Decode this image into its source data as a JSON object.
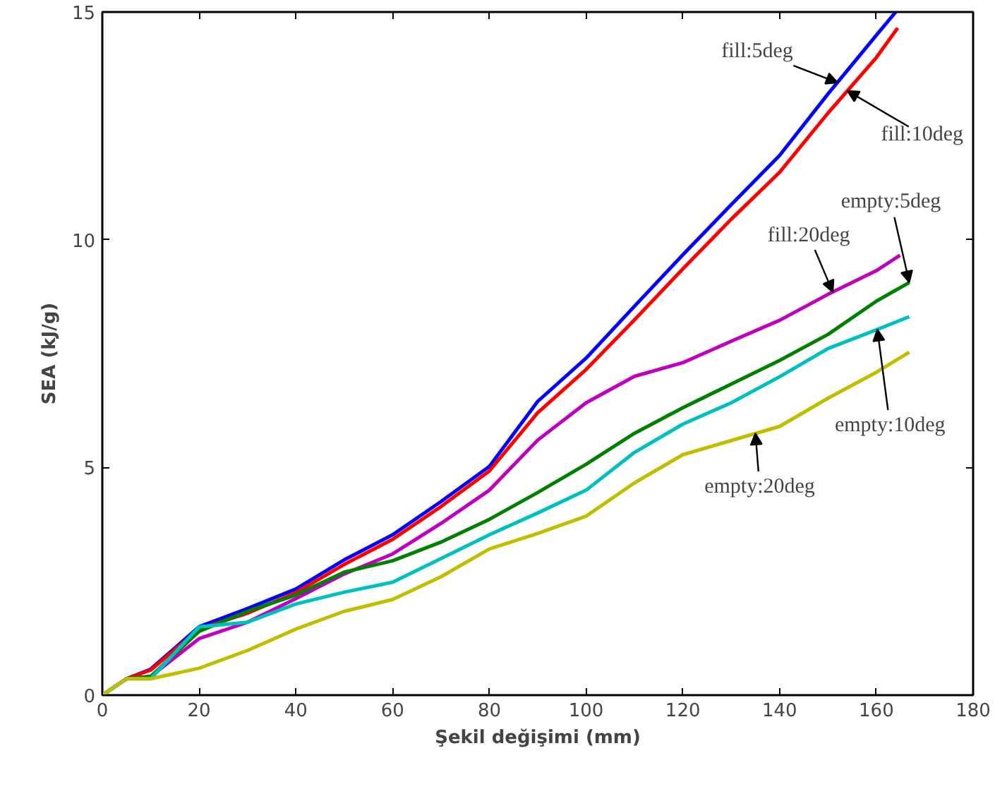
{
  "chart_data": {
    "type": "line",
    "xlabel": "Şekil değişimi (mm)",
    "ylabel": "SEA (kJ/g)",
    "xlim": [
      0,
      180
    ],
    "ylim": [
      0,
      15
    ],
    "xticks": [
      0,
      20,
      40,
      60,
      80,
      100,
      120,
      140,
      160,
      180
    ],
    "yticks": [
      0,
      5,
      10,
      15
    ],
    "line_style": "solid",
    "marker": "none",
    "series": [
      {
        "color": "#0000ff",
        "x": [
          0,
          5,
          10,
          20,
          30,
          40,
          50,
          60,
          70,
          80,
          90,
          100,
          110,
          120,
          130,
          140,
          150,
          160,
          164
        ],
        "values": [
          0,
          0.36,
          0.57,
          1.5,
          1.9,
          2.33,
          2.97,
          3.52,
          4.25,
          5.02,
          6.45,
          7.4,
          8.54,
          9.67,
          10.77,
          11.85,
          13.2,
          14.49,
          15.0
        ]
      },
      {
        "color": "#ff0000",
        "x": [
          0,
          5,
          10,
          20,
          30,
          40,
          50,
          60,
          70,
          80,
          90,
          100,
          110,
          120,
          130,
          140,
          150,
          160,
          164.4
        ],
        "values": [
          0,
          0.36,
          0.55,
          1.45,
          1.8,
          2.25,
          2.87,
          3.42,
          4.14,
          4.92,
          6.2,
          7.15,
          8.24,
          9.36,
          10.45,
          11.48,
          12.78,
          14.0,
          14.65
        ]
      },
      {
        "color": "#bf00bf",
        "x": [
          0,
          5,
          10,
          20,
          30,
          40,
          50,
          60,
          70,
          80,
          90,
          100,
          110,
          120,
          130,
          140,
          150,
          160,
          164.9
        ],
        "values": [
          0,
          0.36,
          0.41,
          1.24,
          1.6,
          2.12,
          2.66,
          3.1,
          3.77,
          4.5,
          5.6,
          6.42,
          7.0,
          7.3,
          7.77,
          8.23,
          8.8,
          9.32,
          9.66
        ]
      },
      {
        "color": "#008000",
        "x": [
          0,
          5,
          10,
          20,
          30,
          40,
          50,
          60,
          70,
          80,
          90,
          100,
          110,
          120,
          130,
          140,
          150,
          160,
          166.8
        ],
        "values": [
          0,
          0.36,
          0.41,
          1.4,
          1.84,
          2.2,
          2.7,
          2.95,
          3.36,
          3.86,
          4.45,
          5.07,
          5.75,
          6.31,
          6.83,
          7.35,
          7.92,
          8.65,
          9.06
        ]
      },
      {
        "color": "#00bfbf",
        "x": [
          0,
          5,
          10,
          20,
          30,
          40,
          50,
          60,
          70,
          80,
          90,
          100,
          110,
          120,
          130,
          140,
          150,
          160,
          166.8
        ],
        "values": [
          0,
          0.36,
          0.36,
          1.5,
          1.6,
          2.0,
          2.26,
          2.48,
          3.0,
          3.52,
          4.0,
          4.5,
          5.33,
          5.95,
          6.42,
          6.99,
          7.61,
          8.02,
          8.31
        ]
      },
      {
        "color": "#bfbf00",
        "x": [
          0,
          5,
          10,
          20,
          30,
          40,
          50,
          60,
          70,
          80,
          90,
          100,
          110,
          120,
          130,
          140,
          150,
          160,
          166.8
        ],
        "values": [
          0,
          0.36,
          0.36,
          0.59,
          0.98,
          1.45,
          1.84,
          2.1,
          2.6,
          3.21,
          3.55,
          3.93,
          4.66,
          5.28,
          5.59,
          5.9,
          6.52,
          7.09,
          7.53
        ]
      }
    ],
    "annotations": [
      {
        "text": "fill:5deg",
        "x": 152,
        "y": 13.45
      },
      {
        "text": "fill:10deg",
        "x": 154,
        "y": 13.27
      },
      {
        "text": "fill:20deg",
        "x": 151,
        "y": 8.85
      },
      {
        "text": "empty:5deg",
        "x": 166.8,
        "y": 9.06
      },
      {
        "text": "empty:10deg",
        "x": 160.2,
        "y": 8.03
      },
      {
        "text": "empty:20deg",
        "x": 135,
        "y": 5.75
      }
    ]
  }
}
